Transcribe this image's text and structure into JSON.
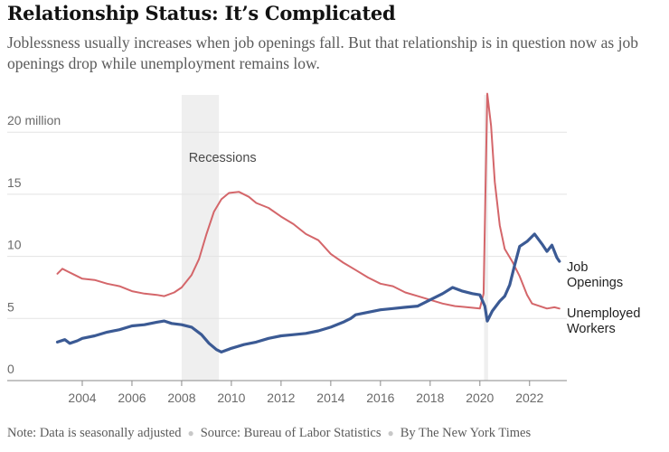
{
  "header": {
    "title": "Relationship Status: It’s Complicated",
    "subtitle": "Joblessness usually increases when job openings fall. But that relationship is in question now as job openings drop while unemployment remains low."
  },
  "footer": {
    "note": "Note: Data is seasonally adjusted",
    "source": "Source: Bureau of Labor Statistics",
    "credit": "By The New York Times"
  },
  "chart_data": {
    "type": "line",
    "title": "Relationship Status: It’s Complicated",
    "xlabel": "",
    "ylabel": "",
    "xlim": [
      2002.8,
      2023.5
    ],
    "ylim": [
      0,
      23
    ],
    "xticks": [
      2004,
      2006,
      2008,
      2010,
      2012,
      2014,
      2016,
      2018,
      2020,
      2022
    ],
    "xtick_labels": [
      "2004",
      "2006",
      "2008",
      "2010",
      "2012",
      "2014",
      "2016",
      "2018",
      "2020",
      "2022"
    ],
    "yticks": [
      0,
      5,
      10,
      15,
      20
    ],
    "ytick_labels": [
      "0",
      "5",
      "10",
      "15",
      "20 million"
    ],
    "grid": true,
    "recessions": [
      {
        "start": 2008.0,
        "end": 2009.5
      },
      {
        "start": 2020.17,
        "end": 2020.33
      }
    ],
    "recession_label": "Recessions",
    "colors": {
      "job_openings": "#3b5a94",
      "unemployed": "#d4666a",
      "recession": "#efefef",
      "grid": "#e3e3e3"
    },
    "series": [
      {
        "name": "Job Openings",
        "label_lines": [
          "Job",
          "Openings"
        ],
        "color": "#3b5a94",
        "points": [
          [
            2003.0,
            3.1
          ],
          [
            2003.3,
            3.3
          ],
          [
            2003.5,
            3.0
          ],
          [
            2003.8,
            3.2
          ],
          [
            2004.0,
            3.4
          ],
          [
            2004.5,
            3.6
          ],
          [
            2005.0,
            3.9
          ],
          [
            2005.5,
            4.1
          ],
          [
            2006.0,
            4.4
          ],
          [
            2006.5,
            4.5
          ],
          [
            2007.0,
            4.7
          ],
          [
            2007.3,
            4.8
          ],
          [
            2007.6,
            4.6
          ],
          [
            2008.0,
            4.5
          ],
          [
            2008.4,
            4.3
          ],
          [
            2008.8,
            3.7
          ],
          [
            2009.1,
            3.0
          ],
          [
            2009.4,
            2.5
          ],
          [
            2009.6,
            2.3
          ],
          [
            2010.0,
            2.6
          ],
          [
            2010.5,
            2.9
          ],
          [
            2011.0,
            3.1
          ],
          [
            2011.5,
            3.4
          ],
          [
            2012.0,
            3.6
          ],
          [
            2012.5,
            3.7
          ],
          [
            2013.0,
            3.8
          ],
          [
            2013.5,
            4.0
          ],
          [
            2014.0,
            4.3
          ],
          [
            2014.5,
            4.7
          ],
          [
            2014.8,
            5.0
          ],
          [
            2015.0,
            5.3
          ],
          [
            2015.5,
            5.5
          ],
          [
            2016.0,
            5.7
          ],
          [
            2016.5,
            5.8
          ],
          [
            2017.0,
            5.9
          ],
          [
            2017.5,
            6.0
          ],
          [
            2018.0,
            6.5
          ],
          [
            2018.5,
            7.0
          ],
          [
            2018.9,
            7.5
          ],
          [
            2019.3,
            7.2
          ],
          [
            2019.7,
            7.0
          ],
          [
            2020.0,
            6.9
          ],
          [
            2020.2,
            6.0
          ],
          [
            2020.3,
            4.8
          ],
          [
            2020.5,
            5.6
          ],
          [
            2020.8,
            6.4
          ],
          [
            2021.0,
            6.8
          ],
          [
            2021.2,
            7.7
          ],
          [
            2021.4,
            9.3
          ],
          [
            2021.6,
            10.8
          ],
          [
            2021.9,
            11.2
          ],
          [
            2022.2,
            11.8
          ],
          [
            2022.5,
            11.0
          ],
          [
            2022.7,
            10.4
          ],
          [
            2022.9,
            10.9
          ],
          [
            2023.1,
            9.9
          ],
          [
            2023.2,
            9.6
          ]
        ]
      },
      {
        "name": "Unemployed Workers",
        "label_lines": [
          "Unemployed",
          "Workers"
        ],
        "color": "#d4666a",
        "points": [
          [
            2003.0,
            8.6
          ],
          [
            2003.2,
            9.0
          ],
          [
            2003.4,
            8.8
          ],
          [
            2003.7,
            8.5
          ],
          [
            2004.0,
            8.2
          ],
          [
            2004.5,
            8.1
          ],
          [
            2005.0,
            7.8
          ],
          [
            2005.5,
            7.6
          ],
          [
            2006.0,
            7.2
          ],
          [
            2006.5,
            7.0
          ],
          [
            2007.0,
            6.9
          ],
          [
            2007.3,
            6.8
          ],
          [
            2007.7,
            7.1
          ],
          [
            2008.0,
            7.5
          ],
          [
            2008.4,
            8.5
          ],
          [
            2008.7,
            9.8
          ],
          [
            2009.0,
            11.8
          ],
          [
            2009.3,
            13.6
          ],
          [
            2009.6,
            14.6
          ],
          [
            2009.9,
            15.1
          ],
          [
            2010.3,
            15.2
          ],
          [
            2010.7,
            14.8
          ],
          [
            2011.0,
            14.3
          ],
          [
            2011.5,
            13.9
          ],
          [
            2012.0,
            13.2
          ],
          [
            2012.5,
            12.6
          ],
          [
            2013.0,
            11.8
          ],
          [
            2013.5,
            11.3
          ],
          [
            2014.0,
            10.2
          ],
          [
            2014.5,
            9.5
          ],
          [
            2015.0,
            8.9
          ],
          [
            2015.5,
            8.3
          ],
          [
            2016.0,
            7.8
          ],
          [
            2016.5,
            7.6
          ],
          [
            2017.0,
            7.1
          ],
          [
            2017.5,
            6.8
          ],
          [
            2018.0,
            6.5
          ],
          [
            2018.5,
            6.2
          ],
          [
            2019.0,
            6.0
          ],
          [
            2019.5,
            5.9
          ],
          [
            2020.0,
            5.8
          ],
          [
            2020.15,
            7.0
          ],
          [
            2020.3,
            23.1
          ],
          [
            2020.45,
            20.5
          ],
          [
            2020.6,
            16.0
          ],
          [
            2020.8,
            12.5
          ],
          [
            2021.0,
            10.6
          ],
          [
            2021.3,
            9.6
          ],
          [
            2021.6,
            8.4
          ],
          [
            2021.9,
            6.9
          ],
          [
            2022.1,
            6.2
          ],
          [
            2022.4,
            6.0
          ],
          [
            2022.7,
            5.8
          ],
          [
            2023.0,
            5.9
          ],
          [
            2023.2,
            5.8
          ]
        ]
      }
    ]
  }
}
